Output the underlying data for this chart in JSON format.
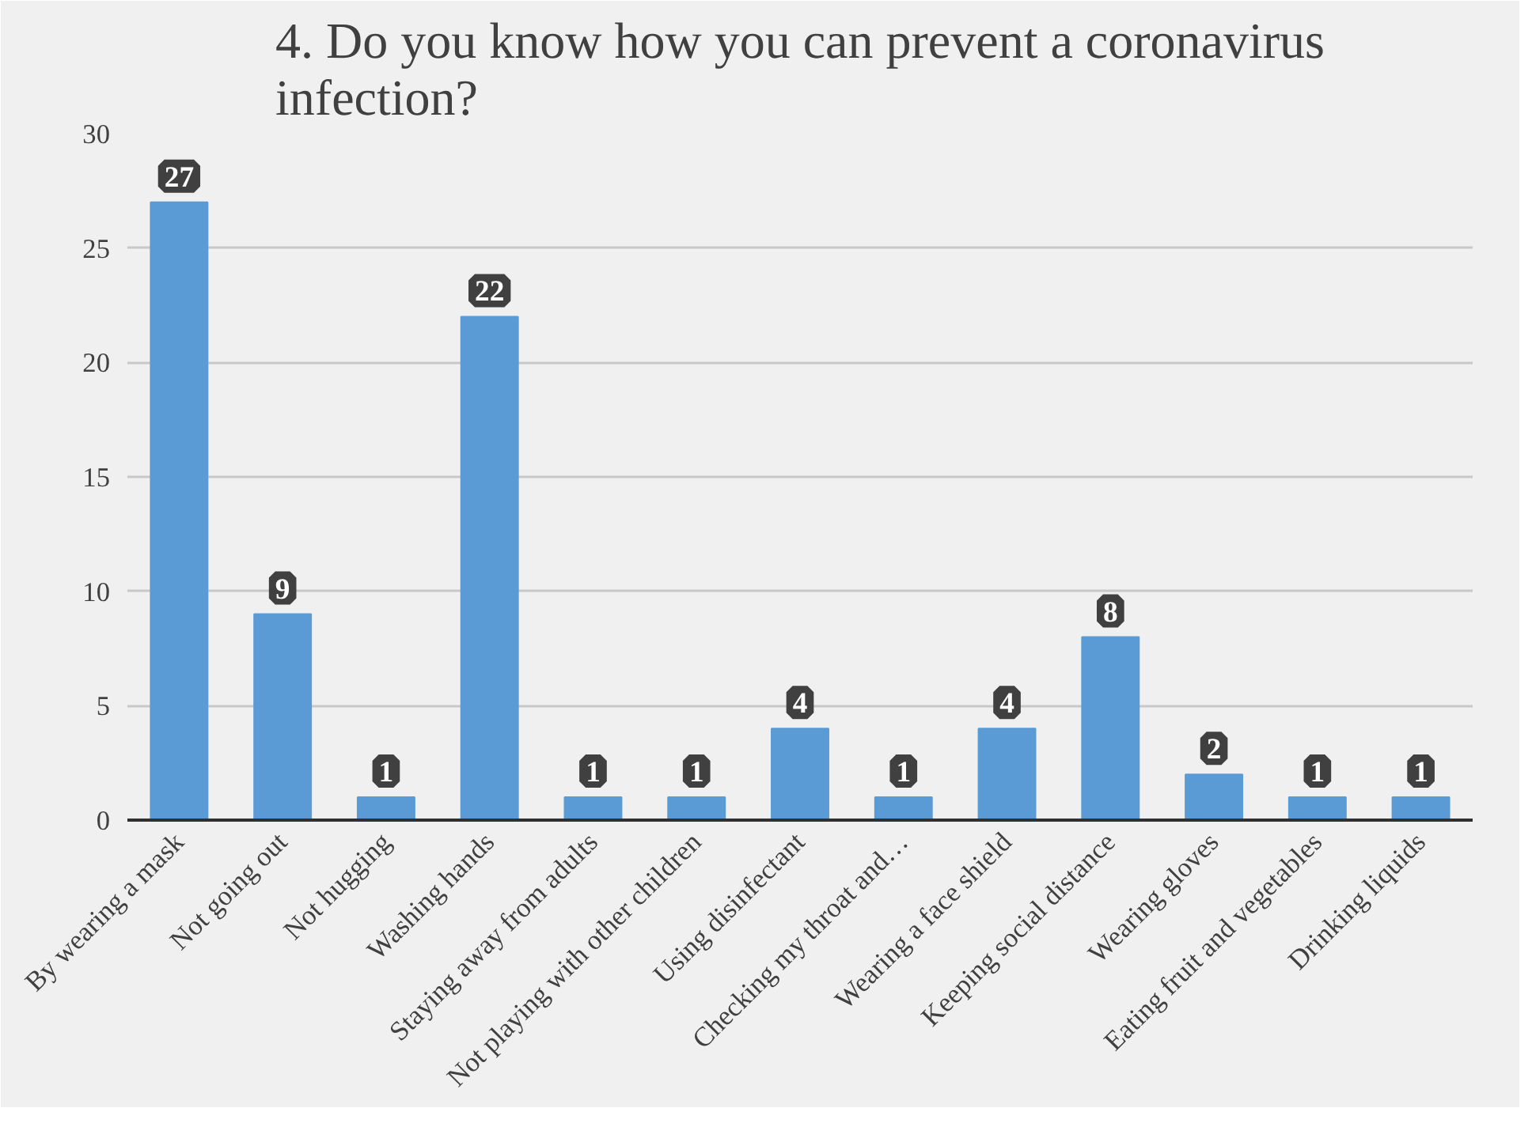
{
  "chart_data": {
    "type": "bar",
    "title": "4. Do you know how you can prevent a coronavirus infection?",
    "categories": [
      "By wearing a mask",
      "Not going out",
      "Not hugging",
      "Washing hands",
      "Staying away from adults",
      "Not playing with other children",
      "Using disinfectant",
      "Checking my throat and…",
      "Wearing a face shield",
      "Keeping social distance",
      "Wearing gloves",
      "Eating fruit and vegetables",
      "Drinking liquids"
    ],
    "values": [
      27,
      9,
      1,
      22,
      1,
      1,
      4,
      1,
      4,
      8,
      2,
      1,
      1
    ],
    "color": "#5b9bd5",
    "ylim": [
      0,
      30
    ],
    "yticks": [
      0,
      5,
      10,
      15,
      20,
      25,
      30
    ],
    "grid": "y",
    "data_labels": true
  }
}
